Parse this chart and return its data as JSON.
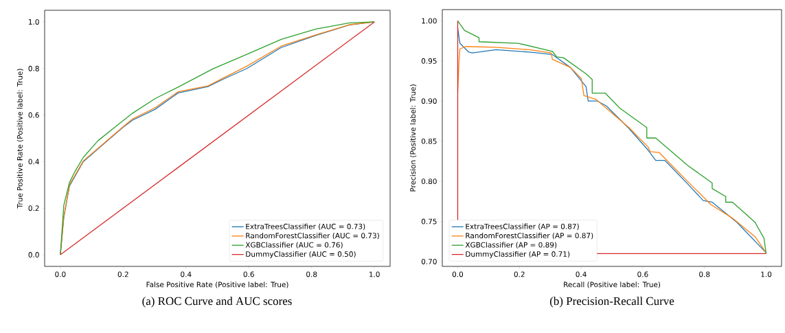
{
  "chart_data": [
    {
      "type": "line",
      "title": "(a) ROC Curve and AUC scores",
      "xlabel": "False Positive Rate (Positive label: True)",
      "ylabel": "True Positive Rate (Positive label: True)",
      "xlim": [
        -0.05,
        1.05
      ],
      "ylim": [
        -0.05,
        1.05
      ],
      "xticks": [
        {
          "value": 0,
          "label": "0.0"
        },
        {
          "value": 0.2,
          "label": "0.2"
        },
        {
          "value": 0.4,
          "label": "0.4"
        },
        {
          "value": 0.6,
          "label": "0.6"
        },
        {
          "value": 0.8,
          "label": "0.8"
        },
        {
          "value": 1,
          "label": "1.0"
        }
      ],
      "yticks": [
        {
          "value": 0,
          "label": "0.0"
        },
        {
          "value": 0.2,
          "label": "0.2"
        },
        {
          "value": 0.4,
          "label": "0.4"
        },
        {
          "value": 0.6,
          "label": "0.6"
        },
        {
          "value": 0.8,
          "label": "0.8"
        },
        {
          "value": 1,
          "label": "1.0"
        }
      ],
      "legend": "bottom right",
      "series": [
        {
          "name": "ExtraTreesClassifier (AUC = 0.73)",
          "color": "#1f77b4",
          "x": [
            0,
            0.011,
            0.029,
            0.073,
            0.12,
            0.2,
            0.23,
            0.302,
            0.375,
            0.47,
            0.52,
            0.594,
            0.703,
            0.813,
            0.92,
            1
          ],
          "values": [
            0,
            0.16,
            0.295,
            0.4,
            0.455,
            0.548,
            0.578,
            0.625,
            0.695,
            0.722,
            0.755,
            0.8,
            0.89,
            0.942,
            0.987,
            1
          ]
        },
        {
          "name": "RandomForestClassifier (AUC = 0.73)",
          "color": "#ff7f0e",
          "x": [
            0,
            0.011,
            0.029,
            0.073,
            0.12,
            0.2,
            0.23,
            0.302,
            0.375,
            0.47,
            0.52,
            0.594,
            0.703,
            0.813,
            0.92,
            1
          ],
          "values": [
            0,
            0.164,
            0.3,
            0.403,
            0.457,
            0.55,
            0.583,
            0.632,
            0.7,
            0.725,
            0.76,
            0.81,
            0.896,
            0.944,
            0.988,
            1
          ]
        },
        {
          "name": "XGBClassifier (AUC = 0.76)",
          "color": "#2ca02c",
          "x": [
            0,
            0.011,
            0.029,
            0.047,
            0.073,
            0.12,
            0.179,
            0.23,
            0.302,
            0.375,
            0.485,
            0.594,
            0.703,
            0.813,
            0.92,
            1
          ],
          "values": [
            0,
            0.213,
            0.31,
            0.359,
            0.418,
            0.49,
            0.554,
            0.608,
            0.671,
            0.72,
            0.798,
            0.861,
            0.925,
            0.969,
            0.996,
            1
          ]
        },
        {
          "name": "DummyClassifier (AUC = 0.50)",
          "color": "#d62728",
          "x": [
            0,
            1
          ],
          "values": [
            0,
            1
          ]
        }
      ]
    },
    {
      "type": "line",
      "title": "(b) Precision-Recall Curve",
      "xlabel": "Recall (Positive label: True)",
      "ylabel": "Precision (Positive label: True)",
      "xlim": [
        -0.05,
        1.05
      ],
      "ylim": [
        0.694,
        1.014
      ],
      "xticks": [
        {
          "value": 0,
          "label": "0.0"
        },
        {
          "value": 0.2,
          "label": "0.2"
        },
        {
          "value": 0.4,
          "label": "0.4"
        },
        {
          "value": 0.6,
          "label": "0.6"
        },
        {
          "value": 0.8,
          "label": "0.8"
        },
        {
          "value": 1,
          "label": "1.0"
        }
      ],
      "yticks": [
        {
          "value": 0.7,
          "label": "0.70"
        },
        {
          "value": 0.75,
          "label": "0.75"
        },
        {
          "value": 0.8,
          "label": "0.80"
        },
        {
          "value": 0.85,
          "label": "0.85"
        },
        {
          "value": 0.9,
          "label": "0.90"
        },
        {
          "value": 0.95,
          "label": "0.95"
        },
        {
          "value": 1,
          "label": "1.00"
        }
      ],
      "legend": "bottom left",
      "series": [
        {
          "name": "ExtraTreesClassifier (AP = 0.87)",
          "color": "#1f77b4",
          "x": [
            0,
            0.007,
            0.036,
            0.047,
            0.124,
            0.234,
            0.307,
            0.365,
            0.416,
            0.423,
            0.453,
            0.482,
            0.555,
            0.617,
            0.642,
            0.672,
            0.745,
            0.796,
            0.825,
            0.905,
            0.92,
            1
          ],
          "values": [
            0.991,
            0.972,
            0.961,
            0.96,
            0.964,
            0.961,
            0.958,
            0.942,
            0.918,
            0.9,
            0.9,
            0.894,
            0.866,
            0.839,
            0.826,
            0.826,
            0.797,
            0.776,
            0.774,
            0.749,
            0.743,
            0.711
          ]
        },
        {
          "name": "RandomForestClassifier (AP = 0.87)",
          "color": "#ff7f0e",
          "x": [
            0,
            0.004,
            0.007,
            0.026,
            0.124,
            0.234,
            0.303,
            0.307,
            0.365,
            0.401,
            0.409,
            0.449,
            0.482,
            0.555,
            0.617,
            0.624,
            0.653,
            0.745,
            0.821,
            0.891,
            0.964,
            1
          ],
          "values": [
            0.911,
            0.948,
            0.965,
            0.968,
            0.967,
            0.964,
            0.96,
            0.952,
            0.942,
            0.928,
            0.907,
            0.902,
            0.891,
            0.867,
            0.843,
            0.837,
            0.836,
            0.8,
            0.771,
            0.754,
            0.731,
            0.711
          ]
        },
        {
          "name": "XGBClassifier (AP = 0.89)",
          "color": "#2ca02c",
          "x": [
            0,
            0.022,
            0.069,
            0.069,
            0.197,
            0.307,
            0.321,
            0.343,
            0.416,
            0.436,
            0.436,
            0.478,
            0.526,
            0.613,
            0.613,
            0.642,
            0.745,
            0.825,
            0.825,
            0.869,
            0.869,
            0.891,
            0.964,
            0.993,
            1
          ],
          "values": [
            1.0,
            0.988,
            0.979,
            0.974,
            0.972,
            0.962,
            0.955,
            0.954,
            0.934,
            0.927,
            0.91,
            0.91,
            0.891,
            0.867,
            0.854,
            0.854,
            0.82,
            0.798,
            0.791,
            0.781,
            0.774,
            0.774,
            0.749,
            0.729,
            0.71
          ]
        },
        {
          "name": "DummyClassifier (AP = 0.71)",
          "color": "#d62728",
          "x": [
            0,
            0,
            1
          ],
          "values": [
            1.0,
            0.71,
            0.71
          ]
        }
      ]
    }
  ]
}
